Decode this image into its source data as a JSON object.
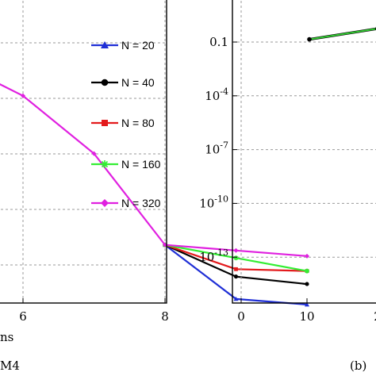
{
  "chart_data": [
    {
      "type": "line",
      "panel": "left",
      "x_ticks": [
        "6",
        "8",
        "10"
      ],
      "xlabel_fragment": "ns",
      "caption_fragment": "M4",
      "grid": true,
      "legend_position": "right",
      "series": [
        {
          "name": "N = 20",
          "color": "#1f2fd6",
          "marker": "triangle",
          "x": [
            8,
            9,
            10
          ],
          "y": [
            -1.25,
            -2.7,
            -2.85
          ]
        },
        {
          "name": "N = 40",
          "color": "#000000",
          "marker": "circle",
          "x": [
            8,
            9,
            10
          ],
          "y": [
            -1.25,
            -2.1,
            -2.3
          ]
        },
        {
          "name": "N = 80",
          "color": "#e31a1c",
          "marker": "square",
          "x": [
            8,
            9,
            10
          ],
          "y": [
            -1.25,
            -1.9,
            -1.95
          ]
        },
        {
          "name": "N = 160",
          "color": "#33ee33",
          "marker": "star",
          "x": [
            8,
            9,
            10
          ],
          "y": [
            -1.25,
            -1.6,
            -1.95
          ]
        },
        {
          "name": "N = 320",
          "color": "#e020e0",
          "marker": "diamond",
          "x": [
            5,
            6,
            7,
            8,
            9,
            10
          ],
          "y": [
            3.7,
            2.75,
            1.2,
            -1.25,
            -1.4,
            -1.55
          ]
        }
      ]
    },
    {
      "type": "line",
      "panel": "right",
      "x_ticks": [
        "0",
        "2"
      ],
      "y_ticks": [
        {
          "base": "0.1",
          "exp": ""
        },
        {
          "base": "10",
          "exp": "-4"
        },
        {
          "base": "10",
          "exp": "-7"
        },
        {
          "base": "10",
          "exp": "-10"
        },
        {
          "base": "10",
          "exp": "-13"
        }
      ],
      "yscale": "log",
      "caption": "(b)",
      "grid": true,
      "series": [
        {
          "color": "#33cc33",
          "x": [
            1,
            2,
            3,
            4
          ],
          "y": [
            -0.85,
            -0.25,
            -1.0,
            -1.2
          ]
        }
      ]
    }
  ]
}
